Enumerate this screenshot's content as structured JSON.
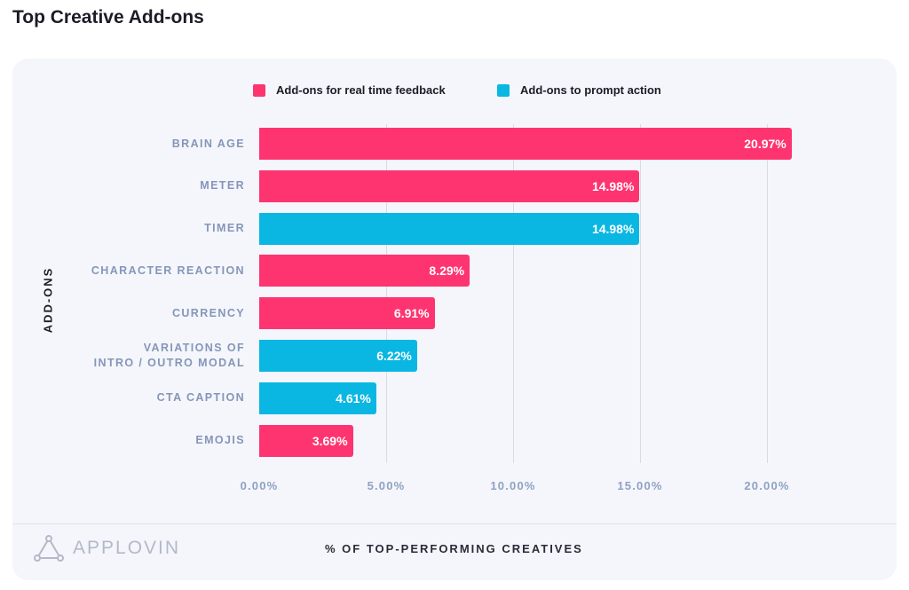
{
  "title": "Top Creative Add-ons",
  "legend": {
    "feedback": "Add-ons for real time feedback",
    "action": "Add-ons to prompt action"
  },
  "colors": {
    "feedback": "#fe3470",
    "action": "#0ab7e2"
  },
  "brand": {
    "logo_text": "APPLOVIN"
  },
  "chart_data": {
    "type": "bar",
    "orientation": "horizontal",
    "title": "Top Creative Add-ons",
    "xlabel": "% OF TOP-PERFORMING CREATIVES",
    "ylabel": "ADD-ONS",
    "xlim": [
      0,
      22
    ],
    "ticks": [
      0,
      5,
      10,
      15,
      20
    ],
    "tick_labels": [
      "0.00%",
      "5.00%",
      "10.00%",
      "15.00%",
      "20.00%"
    ],
    "grid": true,
    "legend_position": "top",
    "series": [
      {
        "name": "Add-ons for real time feedback",
        "key": "feedback"
      },
      {
        "name": "Add-ons to prompt action",
        "key": "action"
      }
    ],
    "bars": [
      {
        "category": "BRAIN AGE",
        "value": 20.97,
        "label": "20.97%",
        "series": "feedback"
      },
      {
        "category": "METER",
        "value": 14.98,
        "label": "14.98%",
        "series": "feedback"
      },
      {
        "category": "TIMER",
        "value": 14.98,
        "label": "14.98%",
        "series": "action"
      },
      {
        "category": "CHARACTER REACTION",
        "value": 8.29,
        "label": "8.29%",
        "series": "feedback"
      },
      {
        "category": "CURRENCY",
        "value": 6.91,
        "label": "6.91%",
        "series": "feedback"
      },
      {
        "category": "VARIATIONS OF\nINTRO / OUTRO MODAL",
        "value": 6.22,
        "label": "6.22%",
        "series": "action"
      },
      {
        "category": "CTA CAPTION",
        "value": 4.61,
        "label": "4.61%",
        "series": "action"
      },
      {
        "category": "EMOJIS",
        "value": 3.69,
        "label": "3.69%",
        "series": "feedback"
      }
    ]
  }
}
